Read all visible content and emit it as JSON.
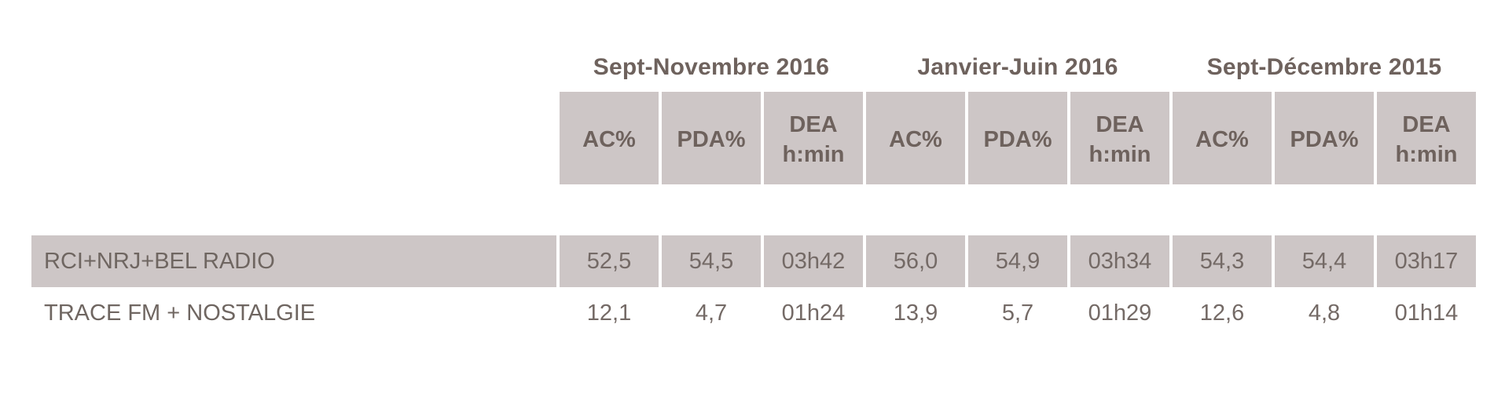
{
  "colors": {
    "cell_background": "#cdc6c6",
    "header_text": "#6e625d",
    "value_text": "#746a66",
    "page_background": "#ffffff"
  },
  "table": {
    "periods": [
      "Sept-Novembre 2016",
      "Janvier-Juin 2016",
      "Sept-Décembre 2015"
    ],
    "column_headers": [
      "AC%",
      "PDA%",
      "DEA\nh:min",
      "AC%",
      "PDA%",
      "DEA\nh:min",
      "AC%",
      "PDA%",
      "DEA\nh:min"
    ],
    "rows": [
      {
        "label": "RCI+NRJ+BEL RADIO",
        "highlighted": true,
        "values": [
          "52,5",
          "54,5",
          "03h42",
          "56,0",
          "54,9",
          "03h34",
          "54,3",
          "54,4",
          "03h17"
        ]
      },
      {
        "label": "TRACE FM + NOSTALGIE",
        "highlighted": false,
        "values": [
          "12,1",
          "4,7",
          "01h24",
          "13,9",
          "5,7",
          "01h29",
          "12,6",
          "4,8",
          "01h14"
        ]
      }
    ]
  },
  "chart_data": {
    "type": "table",
    "title": "",
    "column_groups": [
      {
        "label": "Sept-Novembre 2016",
        "columns": [
          "AC%",
          "PDA%",
          "DEA h:min"
        ]
      },
      {
        "label": "Janvier-Juin 2016",
        "columns": [
          "AC%",
          "PDA%",
          "DEA h:min"
        ]
      },
      {
        "label": "Sept-Décembre 2015",
        "columns": [
          "AC%",
          "PDA%",
          "DEA h:min"
        ]
      }
    ],
    "rows": [
      {
        "name": "RCI+NRJ+BEL RADIO",
        "sept_novembre_2016": {
          "ac_pct": 52.5,
          "pda_pct": 54.5,
          "dea_hmin": "03h42"
        },
        "janvier_juin_2016": {
          "ac_pct": 56.0,
          "pda_pct": 54.9,
          "dea_hmin": "03h34"
        },
        "sept_decembre_2015": {
          "ac_pct": 54.3,
          "pda_pct": 54.4,
          "dea_hmin": "03h17"
        }
      },
      {
        "name": "TRACE FM + NOSTALGIE",
        "sept_novembre_2016": {
          "ac_pct": 12.1,
          "pda_pct": 4.7,
          "dea_hmin": "01h24"
        },
        "janvier_juin_2016": {
          "ac_pct": 13.9,
          "pda_pct": 5.7,
          "dea_hmin": "01h29"
        },
        "sept_decembre_2015": {
          "ac_pct": 12.6,
          "pda_pct": 4.8,
          "dea_hmin": "01h14"
        }
      }
    ]
  }
}
